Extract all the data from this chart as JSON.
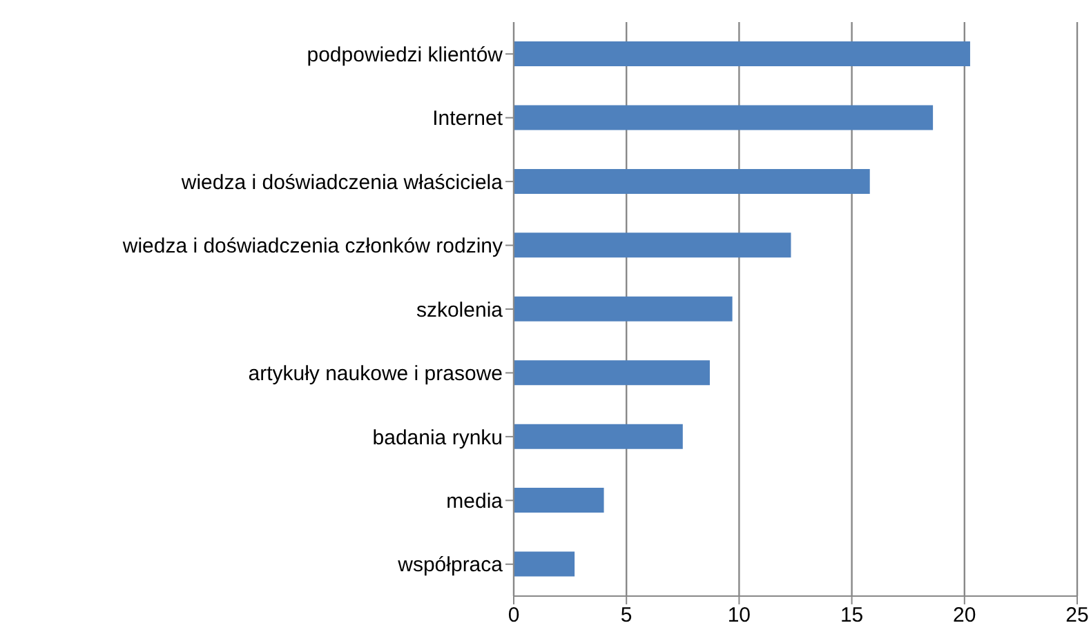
{
  "chart_data": {
    "type": "bar",
    "orientation": "horizontal",
    "categories": [
      "podpowiedzi klientów",
      "Internet",
      "wiedza i doświadczenia właściciela",
      "wiedza i doświadczenia członków rodziny",
      "szkolenia",
      "artykuły naukowe i prasowe",
      "badania rynku",
      "media",
      "współpraca"
    ],
    "values": [
      20.25,
      18.6,
      15.8,
      12.3,
      9.7,
      8.7,
      7.5,
      4.0,
      2.7
    ],
    "color": "#4f81bd",
    "xlim": [
      0,
      25
    ],
    "xticks": [
      0,
      5,
      10,
      15,
      20,
      25
    ],
    "grid": "x"
  }
}
